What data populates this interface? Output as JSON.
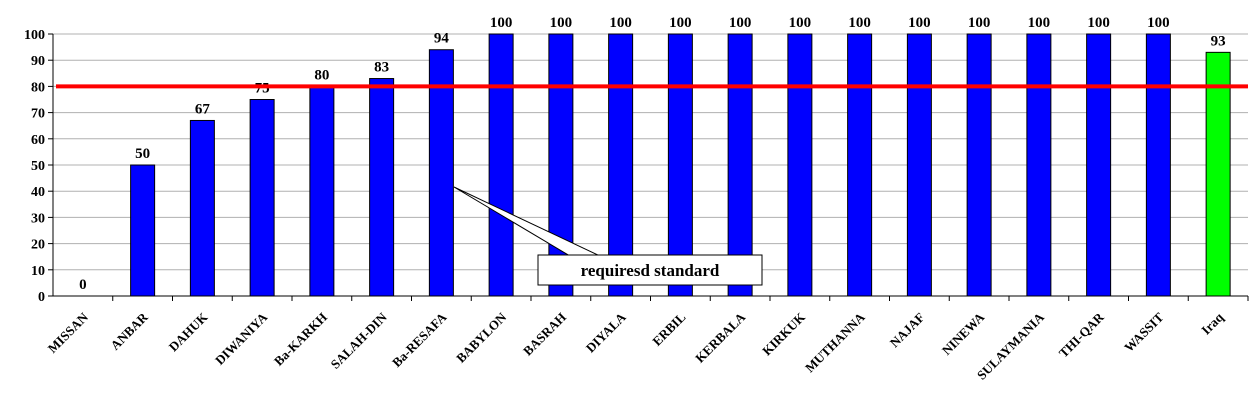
{
  "chart_data": {
    "type": "bar",
    "categories": [
      "MISSAN",
      "ANBAR",
      "DAHUK",
      "DIWANIYA",
      "Ba-KARKH",
      "SALAH-DIN",
      "Ba-RESAFA",
      "BABYLON",
      "BASRAH",
      "DIYALA",
      "ERBIL",
      "KERBALA",
      "KIRKUK",
      "MUTHANNA",
      "NAJAF",
      "NINEWA",
      "SULAYMANIA",
      "THI-QAR",
      "WASSIT",
      "Iraq"
    ],
    "values": [
      0,
      50,
      67,
      75,
      80,
      83,
      94,
      100,
      100,
      100,
      100,
      100,
      100,
      100,
      100,
      100,
      100,
      100,
      100,
      93
    ],
    "data_labels": [
      "0",
      "50",
      "67",
      "75",
      "80",
      "83",
      "94",
      "100",
      "100",
      "100",
      "100",
      "100",
      "100",
      "100",
      "100",
      "100",
      "100",
      "100",
      "100",
      "93"
    ],
    "y_ticks": [
      "0",
      "10",
      "20",
      "30",
      "40",
      "50",
      "60",
      "70",
      "80",
      "90",
      "100"
    ],
    "ylim": [
      0,
      100
    ],
    "grid": true,
    "reference_line": {
      "value": 80,
      "label": "requiresd standard",
      "color": "#ff0000"
    },
    "colors": {
      "bar": "#0000ff",
      "highlight_bar": "#00ff00",
      "highlight_category": "Iraq"
    },
    "legend": "none"
  }
}
